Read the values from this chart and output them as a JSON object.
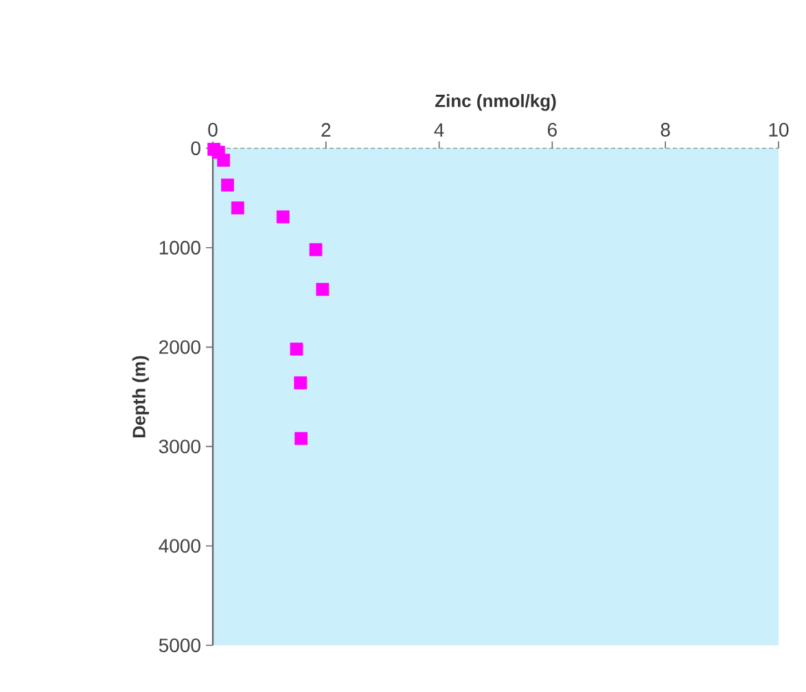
{
  "chart_data": {
    "type": "scatter",
    "xlabel": "Zinc (nmol/kg)",
    "ylabel": "Depth (m)",
    "x": [
      0.02,
      0.1,
      0.19,
      0.26,
      0.44,
      1.24,
      1.82,
      1.94,
      1.48,
      1.55,
      1.56
    ],
    "series": [
      {
        "color": "#ff00ff",
        "values": [
          10,
          40,
          120,
          370,
          600,
          690,
          1020,
          1420,
          2020,
          2360,
          2920
        ]
      }
    ],
    "xlim": [
      0,
      10
    ],
    "xticks": [
      0,
      2,
      4,
      6,
      8,
      10
    ],
    "ylim": [
      5000,
      0
    ],
    "yticks": [
      0,
      1000,
      2000,
      3000,
      4000,
      5000
    ],
    "marker": "square",
    "grid": false
  }
}
